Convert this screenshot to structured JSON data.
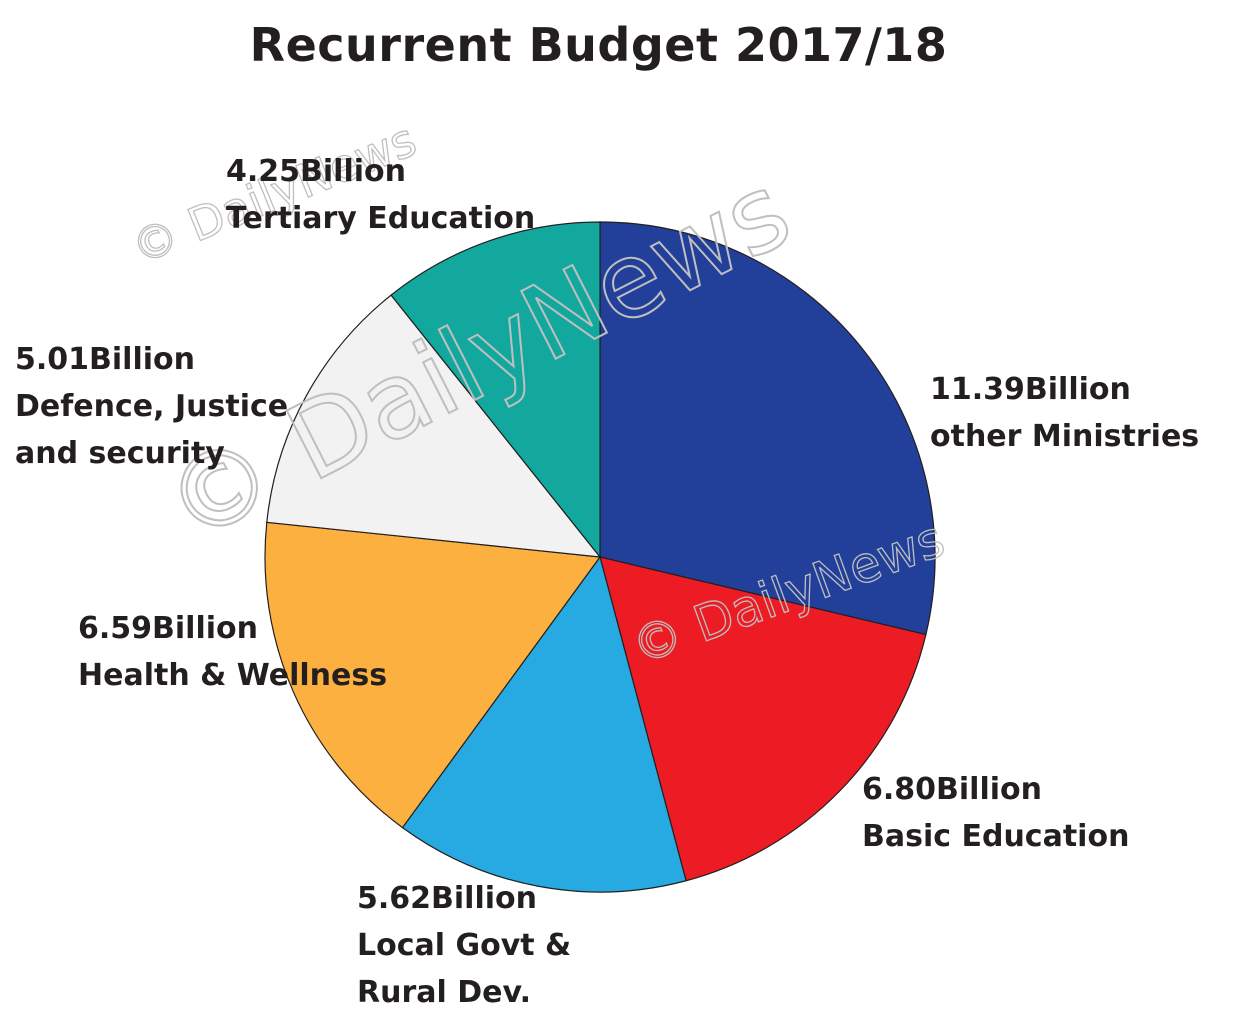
{
  "chart_data": {
    "type": "pie",
    "title": "Recurrent Budget 2017/18",
    "unit": "Billion",
    "slices": [
      {
        "value": 11.39,
        "value_label": "11.39Billion",
        "lines": [
          "other Ministries"
        ],
        "color": "#22409a"
      },
      {
        "value": 6.8,
        "value_label": "6.80Billion",
        "lines": [
          "Basic Education"
        ],
        "color": "#ed1c24"
      },
      {
        "value": 5.62,
        "value_label": "5.62Billion",
        "lines": [
          "Local Govt &",
          "Rural Dev."
        ],
        "color": "#27aae1"
      },
      {
        "value": 6.59,
        "value_label": "6.59Billion",
        "lines": [
          "Health & Wellness"
        ],
        "color": "#fbb040"
      },
      {
        "value": 5.01,
        "value_label": "5.01Billion",
        "lines": [
          "Defence, Justice",
          "and security"
        ],
        "color": "#f2f2f2"
      },
      {
        "value": 4.25,
        "value_label": "4.25Billion",
        "lines": [
          "Tertiary Education"
        ],
        "color": "#13a89e"
      }
    ]
  },
  "watermark": {
    "text": "© DailyNews"
  }
}
